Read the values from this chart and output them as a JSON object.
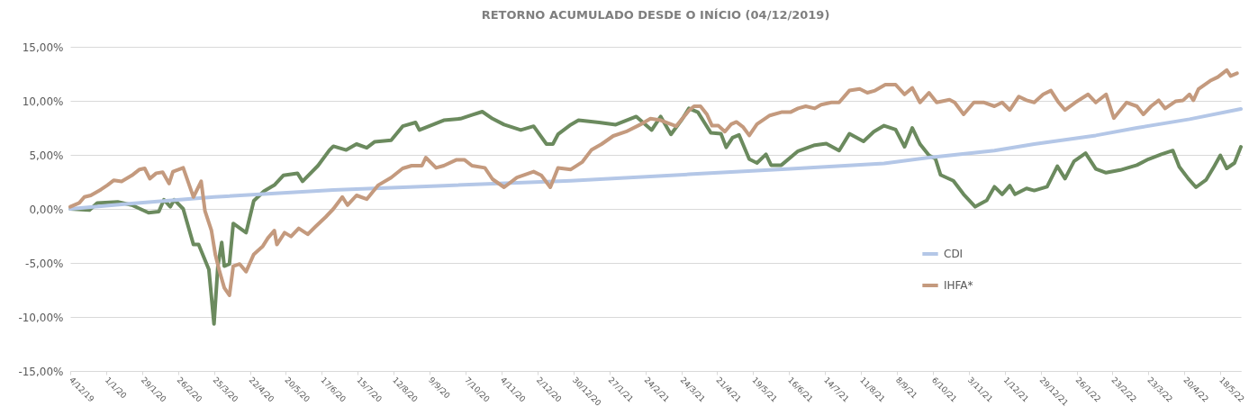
{
  "chart_data": {
    "type": "line",
    "title": "RETORNO ACUMULADO DESDE O INÍCIO (04/12/2019)",
    "xlim": [
      "2019-12-04",
      "2022-06-03"
    ],
    "xticks": [
      {
        "value": "2019-12-04",
        "label": "4/12/19"
      },
      {
        "value": "2020-01-01",
        "label": "1/1/20"
      },
      {
        "value": "2020-01-29",
        "label": "29/1/20"
      },
      {
        "value": "2020-02-26",
        "label": "26/2/20"
      },
      {
        "value": "2020-03-25",
        "label": "25/3/20"
      },
      {
        "value": "2020-04-22",
        "label": "22/4/20"
      },
      {
        "value": "2020-05-20",
        "label": "20/5/20"
      },
      {
        "value": "2020-06-17",
        "label": "17/6/20"
      },
      {
        "value": "2020-07-15",
        "label": "15/7/20"
      },
      {
        "value": "2020-08-12",
        "label": "12/8/20"
      },
      {
        "value": "2020-09-09",
        "label": "9/9/20"
      },
      {
        "value": "2020-10-07",
        "label": "7/10/20"
      },
      {
        "value": "2020-11-04",
        "label": "4/11/20"
      },
      {
        "value": "2020-12-02",
        "label": "2/12/20"
      },
      {
        "value": "2020-12-30",
        "label": "30/12/20"
      },
      {
        "value": "2021-01-27",
        "label": "27/1/21"
      },
      {
        "value": "2021-02-24",
        "label": "24/2/21"
      },
      {
        "value": "2021-03-24",
        "label": "24/3/21"
      },
      {
        "value": "2021-04-21",
        "label": "21/4/21"
      },
      {
        "value": "2021-05-19",
        "label": "19/5/21"
      },
      {
        "value": "2021-06-16",
        "label": "16/6/21"
      },
      {
        "value": "2021-07-14",
        "label": "14/7/21"
      },
      {
        "value": "2021-08-11",
        "label": "11/8/21"
      },
      {
        "value": "2021-09-08",
        "label": "8/9/21"
      },
      {
        "value": "2021-10-06",
        "label": "6/10/21"
      },
      {
        "value": "2021-11-03",
        "label": "3/11/21"
      },
      {
        "value": "2021-12-01",
        "label": "1/12/21"
      },
      {
        "value": "2021-12-29",
        "label": "29/12/21"
      },
      {
        "value": "2022-01-26",
        "label": "26/1/22"
      },
      {
        "value": "2022-02-23",
        "label": "23/2/22"
      },
      {
        "value": "2022-03-23",
        "label": "23/3/22"
      },
      {
        "value": "2022-04-20",
        "label": "20/4/22"
      },
      {
        "value": "2022-05-18",
        "label": "18/5/22"
      }
    ],
    "ylim": [
      -15,
      15
    ],
    "yticks": [
      {
        "value": -15,
        "label": "-15,00%"
      },
      {
        "value": -10,
        "label": "-10,00%"
      },
      {
        "value": -5,
        "label": "-5,00%"
      },
      {
        "value": 0,
        "label": "0,00%"
      },
      {
        "value": 5,
        "label": "5,00%"
      },
      {
        "value": 10,
        "label": "10,00%"
      },
      {
        "value": 15,
        "label": "15,00%"
      }
    ],
    "grid": "y",
    "legend": "bottom right",
    "line_style": "solid",
    "marker": "none",
    "series": [
      {
        "color": "#6b8a5e",
        "x": [
          "2019-12-04",
          "2019-12-19",
          "2019-12-25",
          "2020-01-10",
          "2020-01-21",
          "2020-02-03",
          "2020-02-11",
          "2020-02-15",
          "2020-02-20",
          "2020-02-23",
          "2020-03-01",
          "2020-03-09",
          "2020-03-13",
          "2020-03-21",
          "2020-03-25",
          "2020-03-28",
          "2020-03-31",
          "2020-04-02",
          "2020-04-06",
          "2020-04-09",
          "2020-04-19",
          "2020-04-25",
          "2020-05-03",
          "2020-05-11",
          "2020-05-18",
          "2020-05-29",
          "2020-06-02",
          "2020-06-14",
          "2020-06-23",
          "2020-06-26",
          "2020-07-06",
          "2020-07-14",
          "2020-07-22",
          "2020-07-28",
          "2020-08-10",
          "2020-08-19",
          "2020-08-29",
          "2020-09-01",
          "2020-09-20",
          "2020-10-03",
          "2020-10-12",
          "2020-10-20",
          "2020-10-28",
          "2020-11-06",
          "2020-11-19",
          "2020-11-29",
          "2020-12-09",
          "2020-12-14",
          "2020-12-18",
          "2020-12-28",
          "2021-01-03",
          "2021-01-19",
          "2021-02-01",
          "2021-02-17",
          "2021-03-01",
          "2021-03-08",
          "2021-03-16",
          "2021-03-25",
          "2021-03-30",
          "2021-04-06",
          "2021-04-11",
          "2021-04-16",
          "2021-04-24",
          "2021-04-28",
          "2021-05-03",
          "2021-05-08",
          "2021-05-16",
          "2021-05-22",
          "2021-05-29",
          "2021-06-02",
          "2021-06-10",
          "2021-06-23",
          "2021-07-06",
          "2021-07-15",
          "2021-07-25",
          "2021-08-02",
          "2021-08-13",
          "2021-08-21",
          "2021-08-29",
          "2021-09-07",
          "2021-09-14",
          "2021-09-20",
          "2021-09-26",
          "2021-10-03",
          "2021-10-08",
          "2021-10-12",
          "2021-10-22",
          "2021-10-30",
          "2021-11-08",
          "2021-11-17",
          "2021-11-23",
          "2021-11-29",
          "2021-12-05",
          "2021-12-09",
          "2021-12-18",
          "2021-12-24",
          "2022-01-03",
          "2022-01-11",
          "2022-01-17",
          "2022-01-24",
          "2022-02-02",
          "2022-02-10",
          "2022-02-18",
          "2022-03-01",
          "2022-03-14",
          "2022-03-23",
          "2022-04-02",
          "2022-04-11",
          "2022-04-16",
          "2022-04-23",
          "2022-04-29",
          "2022-05-07",
          "2022-05-13",
          "2022-05-18",
          "2022-05-23",
          "2022-05-29",
          "2022-06-03"
        ],
        "values": [
          0,
          -0.1,
          0.55,
          0.65,
          0.35,
          -0.35,
          -0.25,
          0.85,
          0.2,
          0.85,
          0,
          -3.3,
          -3.3,
          -5.6,
          -10.65,
          -5.3,
          -3.1,
          -5.3,
          -5.1,
          -1.35,
          -2.2,
          0.75,
          1.65,
          2.2,
          3.1,
          3.3,
          2.55,
          4.0,
          5.45,
          5.8,
          5.45,
          6.0,
          5.65,
          6.2,
          6.35,
          7.65,
          8.0,
          7.3,
          8.2,
          8.35,
          8.7,
          9.0,
          8.35,
          7.8,
          7.3,
          7.65,
          6.0,
          6.0,
          6.9,
          7.8,
          8.2,
          8.0,
          7.8,
          8.55,
          7.3,
          8.55,
          6.9,
          8.35,
          9.3,
          8.95,
          8.0,
          7.05,
          6.95,
          5.7,
          6.6,
          6.85,
          4.6,
          4.25,
          5.05,
          4.05,
          4.05,
          5.35,
          5.9,
          6.05,
          5.4,
          6.95,
          6.25,
          7.15,
          7.7,
          7.35,
          5.75,
          7.5,
          6.0,
          4.95,
          4.65,
          3.15,
          2.6,
          1.35,
          0.2,
          0.8,
          2.05,
          1.35,
          2.15,
          1.35,
          1.9,
          1.7,
          2.05,
          3.95,
          2.8,
          4.4,
          5.15,
          3.7,
          3.35,
          3.6,
          4.05,
          4.6,
          5.05,
          5.4,
          3.9,
          2.8,
          2.0,
          2.7,
          3.9,
          4.95,
          3.75,
          4.25,
          5.75
        ]
      },
      {
        "name": "CDI",
        "color": "#b4c7e7",
        "x": [
          "2019-12-04",
          "2020-01-21",
          "2020-03-25",
          "2020-06-26",
          "2020-09-20",
          "2020-12-28",
          "2021-03-30",
          "2021-06-17",
          "2021-08-29",
          "2021-10-03",
          "2021-11-23",
          "2021-12-24",
          "2022-02-10",
          "2022-03-14",
          "2022-04-24",
          "2022-06-03"
        ],
        "values": [
          0,
          0.5,
          1.1,
          1.75,
          2.15,
          2.6,
          3.2,
          3.7,
          4.2,
          4.75,
          5.4,
          6.0,
          6.8,
          7.5,
          8.3,
          9.25
        ]
      },
      {
        "name": "IHFA*",
        "color": "#c49a7e",
        "x": [
          "2019-12-04",
          "2019-12-11",
          "2019-12-15",
          "2019-12-20",
          "2019-12-28",
          "2020-01-02",
          "2020-01-07",
          "2020-01-13",
          "2020-01-21",
          "2020-01-27",
          "2020-01-31",
          "2020-02-04",
          "2020-02-09",
          "2020-02-14",
          "2020-02-19",
          "2020-02-22",
          "2020-03-01",
          "2020-03-09",
          "2020-03-15",
          "2020-03-18",
          "2020-03-23",
          "2020-03-26",
          "2020-03-29",
          "2020-04-02",
          "2020-04-06",
          "2020-04-09",
          "2020-04-14",
          "2020-04-19",
          "2020-04-25",
          "2020-05-02",
          "2020-05-06",
          "2020-05-11",
          "2020-05-13",
          "2020-05-19",
          "2020-05-24",
          "2020-05-30",
          "2020-06-06",
          "2020-06-12",
          "2020-06-20",
          "2020-06-26",
          "2020-07-03",
          "2020-07-07",
          "2020-07-14",
          "2020-07-22",
          "2020-07-31",
          "2020-08-10",
          "2020-08-19",
          "2020-08-26",
          "2020-09-03",
          "2020-09-06",
          "2020-09-14",
          "2020-09-20",
          "2020-09-30",
          "2020-10-06",
          "2020-10-12",
          "2020-10-22",
          "2020-10-28",
          "2020-11-06",
          "2020-11-16",
          "2020-11-29",
          "2020-12-05",
          "2020-12-12",
          "2020-12-18",
          "2020-12-28",
          "2021-01-06",
          "2021-01-13",
          "2021-01-21",
          "2021-01-30",
          "2021-02-09",
          "2021-02-20",
          "2021-02-28",
          "2021-03-08",
          "2021-03-20",
          "2021-03-30",
          "2021-04-03",
          "2021-04-08",
          "2021-04-13",
          "2021-04-17",
          "2021-04-22",
          "2021-04-27",
          "2021-05-02",
          "2021-05-06",
          "2021-05-11",
          "2021-05-16",
          "2021-05-22",
          "2021-06-01",
          "2021-06-10",
          "2021-06-17",
          "2021-06-23",
          "2021-06-29",
          "2021-07-06",
          "2021-07-11",
          "2021-07-19",
          "2021-07-25",
          "2021-08-02",
          "2021-08-10",
          "2021-08-16",
          "2021-08-22",
          "2021-08-30",
          "2021-09-07",
          "2021-09-14",
          "2021-09-20",
          "2021-09-26",
          "2021-10-03",
          "2021-10-09",
          "2021-10-19",
          "2021-10-23",
          "2021-10-30",
          "2021-11-07",
          "2021-11-15",
          "2021-11-23",
          "2021-11-29",
          "2021-12-05",
          "2021-12-12",
          "2021-12-18",
          "2021-12-24",
          "2021-12-31",
          "2022-01-06",
          "2022-01-12",
          "2022-01-17",
          "2022-01-25",
          "2022-02-04",
          "2022-02-10",
          "2022-02-18",
          "2022-02-24",
          "2022-03-06",
          "2022-03-14",
          "2022-03-19",
          "2022-03-25",
          "2022-03-31",
          "2022-04-05",
          "2022-04-13",
          "2022-04-19",
          "2022-04-24",
          "2022-04-27",
          "2022-05-01",
          "2022-05-10",
          "2022-05-16",
          "2022-05-23",
          "2022-05-26",
          "2022-05-31"
        ],
        "values": [
          0.2,
          0.55,
          1.1,
          1.25,
          1.8,
          2.2,
          2.65,
          2.55,
          3.1,
          3.65,
          3.75,
          2.8,
          3.3,
          3.4,
          2.35,
          3.45,
          3.8,
          1.1,
          2.55,
          -0.2,
          -2.0,
          -4.2,
          -5.65,
          -7.3,
          -8.0,
          -5.3,
          -5.1,
          -5.8,
          -4.2,
          -3.45,
          -2.7,
          -2.0,
          -3.3,
          -2.2,
          -2.55,
          -1.8,
          -2.35,
          -1.65,
          -0.75,
          0,
          1.1,
          0.35,
          1.25,
          0.9,
          2.2,
          2.9,
          3.75,
          4.0,
          4.0,
          4.75,
          3.8,
          4.0,
          4.55,
          4.55,
          4.0,
          3.8,
          2.75,
          2.0,
          2.9,
          3.45,
          3.1,
          2.0,
          3.8,
          3.65,
          4.35,
          5.45,
          6.0,
          6.75,
          7.15,
          7.8,
          8.35,
          8.2,
          7.65,
          9.1,
          9.5,
          9.5,
          8.75,
          7.7,
          7.7,
          7.15,
          7.85,
          8.05,
          7.6,
          6.8,
          7.85,
          8.65,
          8.95,
          8.95,
          9.3,
          9.5,
          9.3,
          9.65,
          9.85,
          9.85,
          10.95,
          11.1,
          10.75,
          10.95,
          11.5,
          11.5,
          10.6,
          11.2,
          9.85,
          10.75,
          9.85,
          10.1,
          9.85,
          8.75,
          9.85,
          9.85,
          9.5,
          9.85,
          9.15,
          10.4,
          10.05,
          9.85,
          10.6,
          10.95,
          9.85,
          9.15,
          9.85,
          10.6,
          9.85,
          10.6,
          8.4,
          9.85,
          9.5,
          8.75,
          9.5,
          10.05,
          9.3,
          9.95,
          10.05,
          10.6,
          10.05,
          11.1,
          11.85,
          12.2,
          12.85,
          12.3,
          12.55
        ]
      }
    ]
  }
}
